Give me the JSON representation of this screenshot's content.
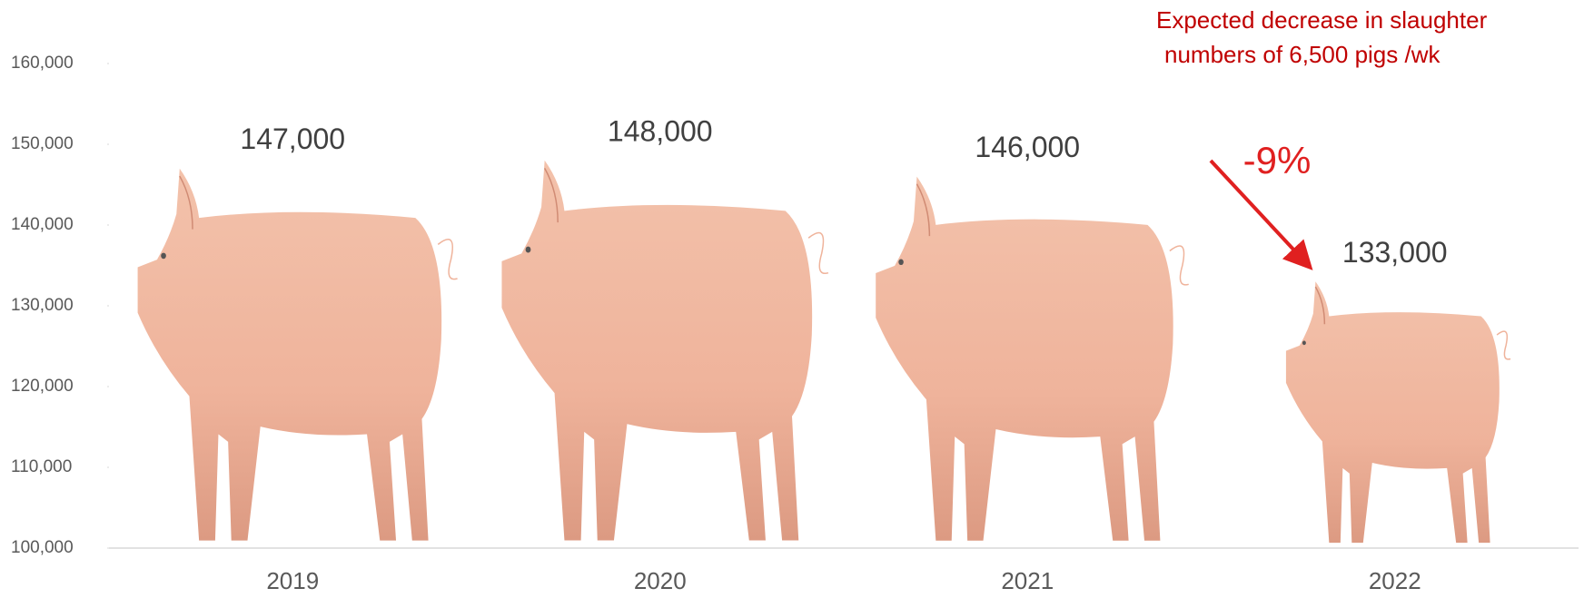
{
  "chart_data": {
    "type": "pictograph",
    "categories": [
      "2019",
      "2020",
      "2021",
      "2022"
    ],
    "values": [
      147000,
      148000,
      146000,
      133000
    ],
    "value_labels": [
      "147,000",
      "148,000",
      "146,000",
      "133,000"
    ],
    "color": "#efb39b",
    "ylim": [
      100000,
      160000
    ],
    "yticks": [
      {
        "value": 100000,
        "label": "100,000"
      },
      {
        "value": 110000,
        "label": "110,000"
      },
      {
        "value": 120000,
        "label": "120,000"
      },
      {
        "value": 130000,
        "label": "130,000"
      },
      {
        "value": 140000,
        "label": "140,000"
      },
      {
        "value": 150000,
        "label": "150,000"
      },
      {
        "value": 160000,
        "label": "160,000"
      }
    ],
    "grid": false,
    "annotations": [
      "Expected decrease in slaughter",
      "numbers of 6,500 pigs /wk",
      "-9%"
    ]
  }
}
